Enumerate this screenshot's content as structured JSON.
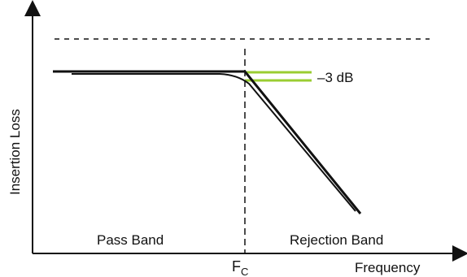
{
  "diagram": {
    "y_axis_label": "Insertion Loss",
    "x_axis_label": "Frequency",
    "cutoff_label_main": "F",
    "cutoff_label_sub": "C",
    "attenuation_label": "–3 dB",
    "pass_band_label": "Pass Band",
    "rejection_band_label": "Rejection Band"
  },
  "colors": {
    "line": "#111111",
    "marker": "#9acd32",
    "background": "#ffffff"
  }
}
